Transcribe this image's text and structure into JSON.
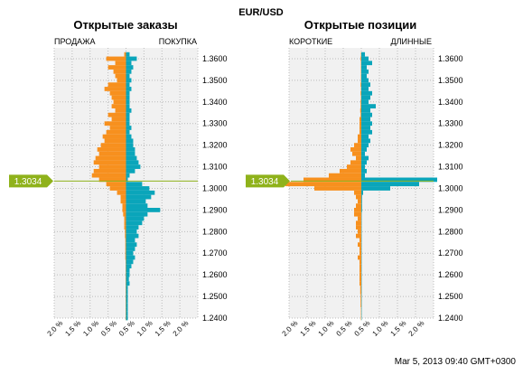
{
  "symbol": "EUR/USD",
  "timestamp": "Mar 5, 2013 09:40 GMT+0300",
  "current_price_label": "1.3034",
  "colors": {
    "sell": "#f7901e",
    "buy": "#0aa5ba",
    "price_line": "#8fb21b",
    "grid": "#bbbbbb",
    "panel_bg": "#f1f1f1"
  },
  "panels": [
    {
      "title": "Открытые заказы",
      "left_label": "ПРОДАЖА",
      "right_label": "ПОКУПКА"
    },
    {
      "title": "Открытые позиции",
      "left_label": "КОРОТКИЕ",
      "right_label": "ДЛИННЫЕ"
    }
  ],
  "chart_data": [
    {
      "type": "bar",
      "orientation": "horizontal-diverging",
      "title": "Открытые заказы",
      "xlabel": "",
      "ylabel": "",
      "x_range": [
        -2.0,
        2.0
      ],
      "x_ticks": [
        "2.0 %",
        "1.5 %",
        "1.0 %",
        "0.5 %",
        "0.5 %",
        "1.0 %",
        "1.5 %",
        "2.0 %"
      ],
      "y_range": [
        1.24,
        1.365
      ],
      "y_ticks": [
        "1.3600",
        "1.3500",
        "1.3400",
        "1.3300",
        "1.3200",
        "1.3100",
        "1.3000",
        "1.2900",
        "1.2800",
        "1.2700",
        "1.2600",
        "1.2500",
        "1.2400"
      ],
      "current_price": 1.3034,
      "grid": true,
      "price_levels": [
        1.362,
        1.36,
        1.358,
        1.356,
        1.354,
        1.352,
        1.35,
        1.348,
        1.346,
        1.344,
        1.342,
        1.34,
        1.338,
        1.336,
        1.334,
        1.332,
        1.33,
        1.328,
        1.326,
        1.324,
        1.322,
        1.32,
        1.318,
        1.316,
        1.314,
        1.312,
        1.31,
        1.308,
        1.306,
        1.304,
        1.302,
        1.3,
        1.298,
        1.296,
        1.294,
        1.292,
        1.29,
        1.288,
        1.286,
        1.284,
        1.282,
        1.28,
        1.278,
        1.276,
        1.274,
        1.272,
        1.27,
        1.268,
        1.266,
        1.264,
        1.262,
        1.26,
        1.258,
        1.256,
        1.254,
        1.252,
        1.25,
        1.248,
        1.246,
        1.244,
        1.242,
        1.24
      ],
      "series": [
        {
          "name": "ПРОДАЖА",
          "values": [
            0.05,
            0.55,
            0.3,
            0.5,
            0.35,
            0.3,
            0.25,
            0.5,
            0.6,
            0.45,
            0.4,
            0.35,
            0.4,
            0.3,
            0.5,
            0.4,
            0.6,
            0.45,
            0.55,
            0.65,
            0.6,
            0.7,
            0.8,
            0.75,
            0.85,
            0.9,
            0.75,
            0.9,
            0.95,
            0.75,
            0.55,
            0.45,
            0.25,
            0.15,
            0.15,
            0.1,
            0.1,
            0.08,
            0.05,
            0.05,
            0.05,
            0.03,
            0.03,
            0.02,
            0.02,
            0.02,
            0.02,
            0.02,
            0.01,
            0.01,
            0.01,
            0.01,
            0.01,
            0.01,
            0.01,
            0.01,
            0.01,
            0.01,
            0.01,
            0.01,
            0.01,
            0.01
          ]
        },
        {
          "name": "ПОКУПКА",
          "values": [
            0.1,
            0.3,
            0.15,
            0.2,
            0.15,
            0.1,
            0.15,
            0.1,
            0.15,
            0.1,
            0.1,
            0.1,
            0.1,
            0.15,
            0.1,
            0.1,
            0.1,
            0.15,
            0.1,
            0.15,
            0.2,
            0.2,
            0.25,
            0.25,
            0.3,
            0.35,
            0.4,
            0.25,
            0.1,
            0.05,
            0.45,
            0.65,
            0.8,
            0.7,
            0.55,
            0.6,
            0.95,
            0.6,
            0.5,
            0.45,
            0.35,
            0.3,
            0.35,
            0.25,
            0.3,
            0.25,
            0.2,
            0.25,
            0.2,
            0.15,
            0.1,
            0.1,
            0.08,
            0.1,
            0.05,
            0.05,
            0.05,
            0.05,
            0.05,
            0.05,
            0.05,
            0.05
          ]
        }
      ]
    },
    {
      "type": "bar",
      "orientation": "horizontal-diverging",
      "title": "Открытые позиции",
      "xlabel": "",
      "ylabel": "",
      "x_range": [
        -2.0,
        2.0
      ],
      "x_ticks": [
        "2.0 %",
        "1.5 %",
        "1.0 %",
        "0.5 %",
        "0.5 %",
        "1.0 %",
        "1.5 %",
        "2.0 %"
      ],
      "y_range": [
        1.24,
        1.365
      ],
      "y_ticks": [
        "1.3600",
        "1.3500",
        "1.3400",
        "1.3300",
        "1.3200",
        "1.3100",
        "1.3000",
        "1.2900",
        "1.2800",
        "1.2700",
        "1.2600",
        "1.2500",
        "1.2400"
      ],
      "current_price": 1.3034,
      "grid": true,
      "price_levels": [
        1.362,
        1.36,
        1.358,
        1.356,
        1.354,
        1.352,
        1.35,
        1.348,
        1.346,
        1.344,
        1.342,
        1.34,
        1.338,
        1.336,
        1.334,
        1.332,
        1.33,
        1.328,
        1.326,
        1.324,
        1.322,
        1.32,
        1.318,
        1.316,
        1.314,
        1.312,
        1.31,
        1.308,
        1.306,
        1.304,
        1.302,
        1.3,
        1.298,
        1.296,
        1.294,
        1.292,
        1.29,
        1.288,
        1.286,
        1.284,
        1.282,
        1.28,
        1.278,
        1.276,
        1.274,
        1.272,
        1.27,
        1.268,
        1.266,
        1.264,
        1.262,
        1.26,
        1.258,
        1.256,
        1.254,
        1.252,
        1.25,
        1.248,
        1.246,
        1.244,
        1.242,
        1.24
      ],
      "series": [
        {
          "name": "КОРОТКИЕ",
          "values": [
            0.01,
            0.02,
            0.01,
            0.01,
            0.01,
            0.01,
            0.01,
            0.02,
            0.01,
            0.02,
            0.01,
            0.02,
            0.02,
            0.03,
            0.02,
            0.05,
            0.05,
            0.05,
            0.05,
            0.1,
            0.1,
            0.2,
            0.3,
            0.25,
            0.15,
            0.3,
            0.4,
            0.6,
            0.9,
            1.6,
            2.1,
            1.3,
            0.2,
            0.15,
            0.1,
            0.15,
            0.2,
            0.2,
            0.1,
            0.15,
            0.15,
            0.1,
            0.15,
            0.05,
            0.1,
            0.05,
            0.05,
            0.1,
            0.05,
            0.05,
            0.05,
            0.05,
            0.05,
            0.05,
            0.03,
            0.03,
            0.02,
            0.02,
            0.02,
            0.01,
            0.01,
            0.01
          ]
        },
        {
          "name": "ДЛИННЫЕ",
          "values": [
            0.1,
            0.2,
            0.3,
            0.15,
            0.2,
            0.15,
            0.2,
            0.25,
            0.2,
            0.3,
            0.25,
            0.2,
            0.4,
            0.25,
            0.3,
            0.25,
            0.3,
            0.25,
            0.3,
            0.2,
            0.25,
            0.2,
            0.15,
            0.1,
            0.2,
            0.15,
            0.1,
            0.15,
            0.1,
            2.1,
            1.6,
            0.8,
            0.05,
            0.02,
            0.02,
            0.02,
            0.02,
            0.01,
            0.01,
            0.01,
            0.01,
            0.01,
            0.01,
            0.01,
            0.01,
            0.01,
            0.01,
            0.01,
            0.01,
            0.01,
            0.01,
            0.01,
            0.01,
            0.01,
            0.01,
            0.01,
            0.01,
            0.01,
            0.01,
            0.01,
            0.01,
            0.01
          ]
        }
      ]
    }
  ]
}
